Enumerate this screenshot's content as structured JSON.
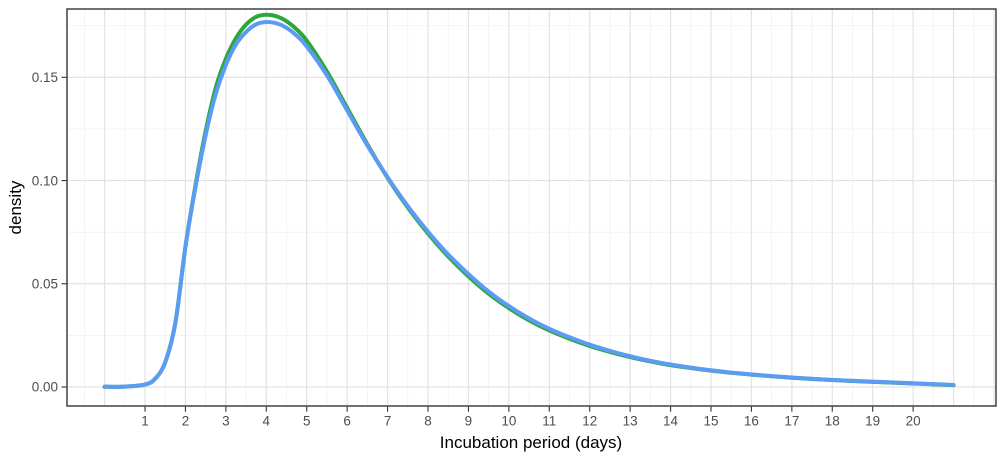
{
  "chart_data": {
    "type": "line",
    "title": "",
    "xlabel": "Incubation period (days)",
    "ylabel": "density",
    "legend": "none",
    "xlim": [
      -0.93,
      22.05
    ],
    "ylim": [
      -0.0092,
      0.1831
    ],
    "x_ticks": [
      1,
      2,
      3,
      4,
      5,
      6,
      7,
      8,
      9,
      10,
      11,
      12,
      13,
      14,
      15,
      16,
      17,
      18,
      19,
      20
    ],
    "y_ticks": [
      {
        "v": 0.0,
        "label": "0.00"
      },
      {
        "v": 0.05,
        "label": "0.05"
      },
      {
        "v": 0.1,
        "label": "0.10"
      },
      {
        "v": 0.15,
        "label": "0.15"
      }
    ],
    "grid": {
      "on": true,
      "x_major": [
        0,
        1,
        2,
        3,
        4,
        5,
        6,
        7,
        8,
        9,
        10,
        11,
        12,
        13,
        14,
        15,
        16,
        17,
        18,
        19,
        20,
        21,
        22
      ],
      "x_minor": [
        -0.5,
        0.5,
        1.5,
        2.5,
        3.5,
        4.5,
        5.5,
        6.5,
        7.5,
        8.5,
        9.5,
        10.5,
        11.5,
        12.5,
        13.5,
        14.5,
        15.5,
        16.5,
        17.5,
        18.5,
        19.5,
        20.5,
        21.5
      ],
      "y_major": [
        0.0,
        0.05,
        0.1,
        0.15
      ],
      "y_minor": [
        0.025,
        0.075,
        0.125,
        0.175
      ],
      "major_color": "#e3e3e3",
      "minor_color": "#f1f1f1"
    },
    "x": [
      0,
      0.5,
      1,
      1.25,
      1.5,
      1.75,
      2,
      2.25,
      2.5,
      2.75,
      3,
      3.25,
      3.5,
      3.75,
      4,
      4.25,
      4.5,
      4.75,
      5,
      5.5,
      6,
      6.5,
      7,
      7.5,
      8,
      8.5,
      9,
      9.5,
      10,
      10.5,
      11,
      11.5,
      12,
      12.5,
      13,
      13.5,
      14,
      14.5,
      15,
      15.5,
      16,
      16.5,
      17,
      17.5,
      18,
      18.5,
      19,
      19.5,
      20,
      20.5,
      21
    ],
    "series": [
      {
        "name": "green-density-curve",
        "color": "#2ca83a",
        "stroke_width": 4,
        "values": [
          0.0001,
          0.0002,
          0.0012,
          0.004,
          0.012,
          0.031,
          0.068,
          0.098,
          0.124,
          0.145,
          0.159,
          0.169,
          0.1756,
          0.1793,
          0.1803,
          0.1796,
          0.1772,
          0.1732,
          0.1678,
          0.1528,
          0.1352,
          0.1176,
          0.1013,
          0.0869,
          0.0743,
          0.0632,
          0.0536,
          0.0452,
          0.0382,
          0.0323,
          0.0274,
          0.0234,
          0.0199,
          0.017,
          0.0145,
          0.0124,
          0.0106,
          0.0092,
          0.0079,
          0.0069,
          0.006,
          0.0052,
          0.0045,
          0.0039,
          0.0034,
          0.0029,
          0.0025,
          0.0021,
          0.0017,
          0.0013,
          0.0009
        ]
      },
      {
        "name": "blue-density-curve",
        "color": "#5b9bf3",
        "stroke_width": 4,
        "values": [
          0.0001,
          0.0002,
          0.0012,
          0.004,
          0.012,
          0.031,
          0.068,
          0.097,
          0.122,
          0.142,
          0.156,
          0.166,
          0.172,
          0.1757,
          0.1768,
          0.1762,
          0.174,
          0.1702,
          0.165,
          0.151,
          0.134,
          0.117,
          0.1016,
          0.0876,
          0.0752,
          0.0642,
          0.0547,
          0.0462,
          0.0392,
          0.0332,
          0.0282,
          0.0241,
          0.0205,
          0.0175,
          0.0149,
          0.0127,
          0.0109,
          0.0094,
          0.0081,
          0.007,
          0.0061,
          0.0053,
          0.0046,
          0.004,
          0.0034,
          0.003,
          0.0026,
          0.0022,
          0.0018,
          0.0014,
          0.001
        ]
      }
    ]
  },
  "styles": {
    "panel_background": "#ffffff",
    "panel_border": "#333333",
    "tick_color": "#333333",
    "tick_label_color": "#4d4d4d",
    "axis_title_color": "#000000",
    "background": "#ffffff"
  }
}
